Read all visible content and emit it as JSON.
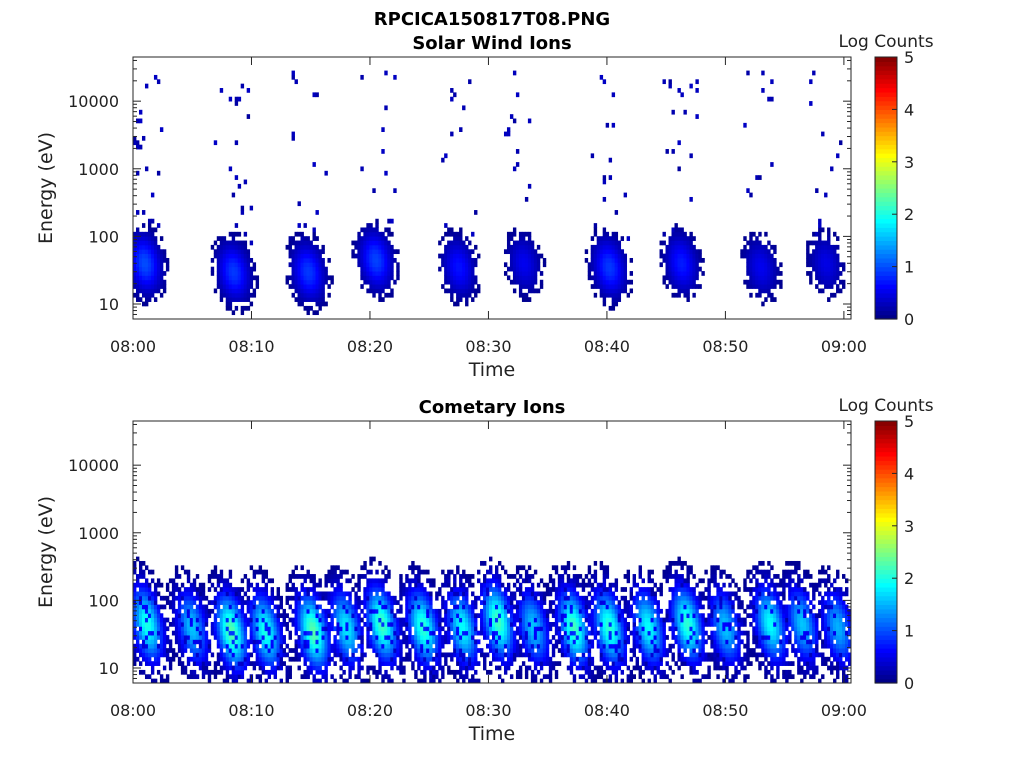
{
  "figure_title": "RPCICA150817T08.PNG",
  "colormap": {
    "stops": [
      "#00007f",
      "#0000ff",
      "#007fff",
      "#00ffff",
      "#7fff7f",
      "#ffff00",
      "#ff7f00",
      "#ff0000",
      "#7f0000"
    ],
    "outside_color": "#ffffff",
    "axis_color": "#262626"
  },
  "chart_data": [
    {
      "type": "heatmap",
      "title": "Solar Wind Ions",
      "xlabel": "Time",
      "ylabel": "Energy (eV)",
      "x_tick_labels": [
        "08:00",
        "08:10",
        "08:20",
        "08:30",
        "08:40",
        "08:50",
        "09:00"
      ],
      "x_tick_minutes": [
        0,
        10,
        20,
        30,
        40,
        50,
        60
      ],
      "xlim_minutes": [
        0,
        60.6
      ],
      "yscale": "log",
      "ylim": [
        6,
        45000
      ],
      "y_tick_labels": [
        "10",
        "100",
        "1000",
        "10000"
      ],
      "y_tick_values": [
        10,
        100,
        1000,
        10000
      ],
      "colorbar": {
        "label": "Log Counts",
        "min": 0,
        "max": 5,
        "tick_labels": [
          "0",
          "1",
          "2",
          "3",
          "4",
          "5"
        ]
      },
      "bursts": [
        {
          "t": 1.0,
          "e": 40,
          "amp": 1.0,
          "noise": 0.45
        },
        {
          "t": 8.5,
          "e": 30,
          "amp": 0.9,
          "noise": 0.4
        },
        {
          "t": 14.8,
          "e": 30,
          "amp": 0.9,
          "noise": 0.4
        },
        {
          "t": 20.5,
          "e": 45,
          "amp": 0.95,
          "noise": 0.4
        },
        {
          "t": 27.5,
          "e": 35,
          "amp": 0.7,
          "noise": 0.35
        },
        {
          "t": 33.0,
          "e": 40,
          "amp": 0.55,
          "noise": 0.35
        },
        {
          "t": 40.2,
          "e": 35,
          "amp": 0.9,
          "noise": 0.4
        },
        {
          "t": 46.3,
          "e": 40,
          "amp": 0.75,
          "noise": 0.4
        },
        {
          "t": 53.0,
          "e": 35,
          "amp": 0.55,
          "noise": 0.35
        },
        {
          "t": 58.5,
          "e": 40,
          "amp": 0.5,
          "noise": 0.35
        }
      ]
    },
    {
      "type": "heatmap",
      "title": "Cometary Ions",
      "xlabel": "Time",
      "ylabel": "Energy (eV)",
      "x_tick_labels": [
        "08:00",
        "08:10",
        "08:20",
        "08:30",
        "08:40",
        "08:50",
        "09:00"
      ],
      "x_tick_minutes": [
        0,
        10,
        20,
        30,
        40,
        50,
        60
      ],
      "xlim_minutes": [
        0,
        60.6
      ],
      "yscale": "log",
      "ylim": [
        6,
        45000
      ],
      "y_tick_labels": [
        "10",
        "100",
        "1000",
        "10000"
      ],
      "y_tick_values": [
        10,
        100,
        1000,
        10000
      ],
      "colorbar": {
        "label": "Log Counts",
        "min": 0,
        "max": 5,
        "tick_labels": [
          "0",
          "1",
          "2",
          "3",
          "4",
          "5"
        ]
      },
      "bursts": [
        {
          "t": 1.2,
          "e": 45,
          "amp": 2.0
        },
        {
          "t": 5.0,
          "e": 40,
          "amp": 1.6
        },
        {
          "t": 8.3,
          "e": 35,
          "amp": 2.3
        },
        {
          "t": 11.2,
          "e": 35,
          "amp": 2.0
        },
        {
          "t": 15.2,
          "e": 35,
          "amp": 2.3
        },
        {
          "t": 18.0,
          "e": 40,
          "amp": 1.8
        },
        {
          "t": 21.0,
          "e": 45,
          "amp": 2.2
        },
        {
          "t": 24.5,
          "e": 40,
          "amp": 2.1
        },
        {
          "t": 27.8,
          "e": 40,
          "amp": 1.9
        },
        {
          "t": 30.8,
          "e": 50,
          "amp": 2.2
        },
        {
          "t": 33.8,
          "e": 40,
          "amp": 1.6
        },
        {
          "t": 37.2,
          "e": 40,
          "amp": 2.2
        },
        {
          "t": 40.2,
          "e": 40,
          "amp": 2.1
        },
        {
          "t": 43.5,
          "e": 40,
          "amp": 1.9
        },
        {
          "t": 46.8,
          "e": 45,
          "amp": 2.1
        },
        {
          "t": 50.0,
          "e": 40,
          "amp": 1.6
        },
        {
          "t": 53.8,
          "e": 45,
          "amp": 1.9
        },
        {
          "t": 56.5,
          "e": 45,
          "amp": 1.6
        },
        {
          "t": 59.5,
          "e": 40,
          "amp": 1.5
        }
      ]
    }
  ]
}
